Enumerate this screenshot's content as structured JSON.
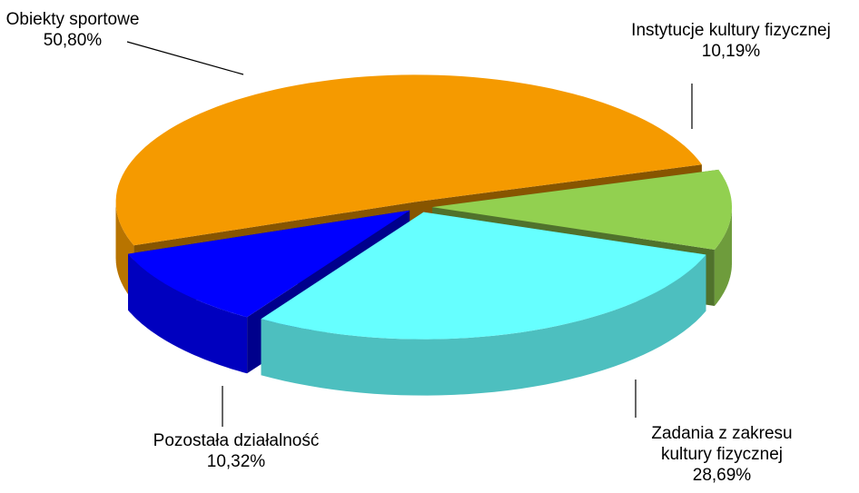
{
  "chart_data": {
    "type": "pie",
    "categories": [
      "Obiekty sportowe",
      "Instytucje kultury fizycznej",
      "Zadania z zakresu kultury fizycznej",
      "Pozostała działalność"
    ],
    "values": [
      50.8,
      10.19,
      28.69,
      10.32
    ],
    "value_labels": [
      "50,80%",
      "10,19%",
      "28,69%",
      "10,32%"
    ],
    "colors": [
      "#f59a00",
      "#92d050",
      "#66ffff",
      "#0000ff"
    ]
  }
}
